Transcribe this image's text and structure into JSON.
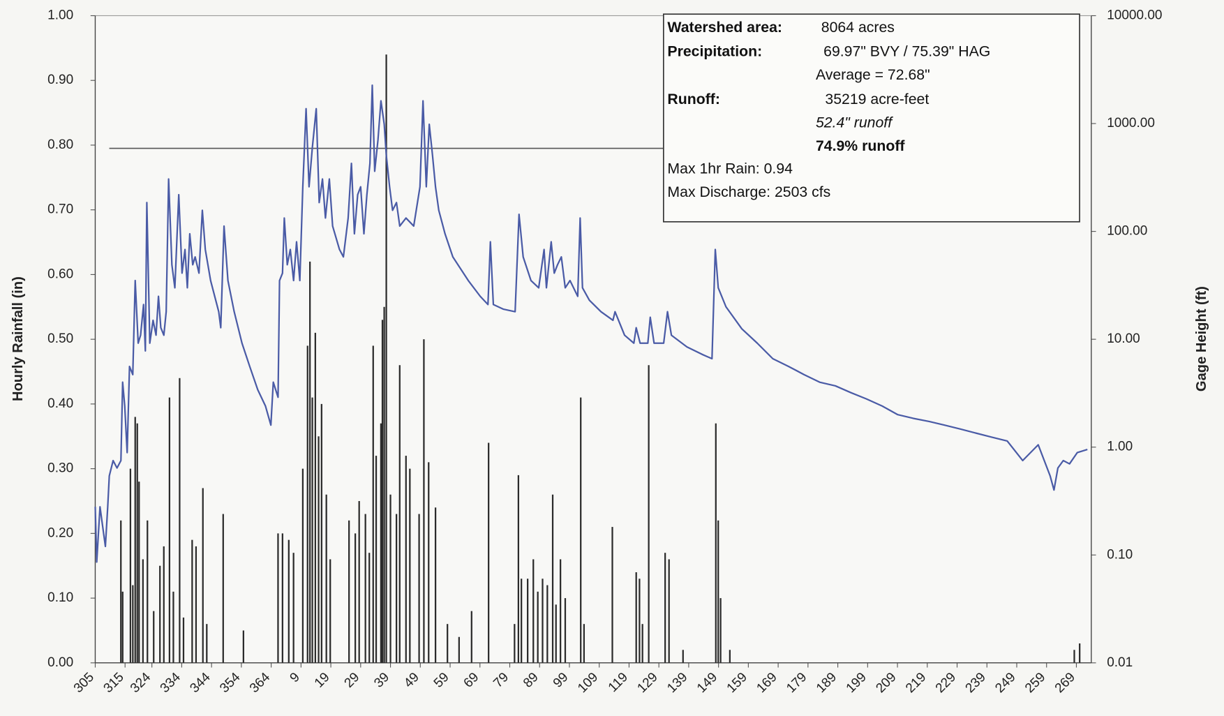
{
  "chart_data": {
    "type": "bar+line",
    "ylabel": "Hourly Rainfall (in)",
    "y2label": "Gage Height (ft)",
    "xlim": [
      0,
      334
    ],
    "xticks": [
      {
        "value": 0,
        "label": "305"
      },
      {
        "value": 10,
        "label": "315"
      },
      {
        "value": 19,
        "label": "324"
      },
      {
        "value": 29,
        "label": "334"
      },
      {
        "value": 39,
        "label": "344"
      },
      {
        "value": 49,
        "label": "354"
      },
      {
        "value": 59,
        "label": "364"
      },
      {
        "value": 69,
        "label": "9"
      },
      {
        "value": 79,
        "label": "19"
      },
      {
        "value": 89,
        "label": "29"
      },
      {
        "value": 99,
        "label": "39"
      },
      {
        "value": 109,
        "label": "49"
      },
      {
        "value": 119,
        "label": "59"
      },
      {
        "value": 129,
        "label": "69"
      },
      {
        "value": 139,
        "label": "79"
      },
      {
        "value": 149,
        "label": "89"
      },
      {
        "value": 159,
        "label": "99"
      },
      {
        "value": 169,
        "label": "109"
      },
      {
        "value": 179,
        "label": "119"
      },
      {
        "value": 189,
        "label": "129"
      },
      {
        "value": 199,
        "label": "139"
      },
      {
        "value": 209,
        "label": "149"
      },
      {
        "value": 219,
        "label": "159"
      },
      {
        "value": 229,
        "label": "169"
      },
      {
        "value": 239,
        "label": "179"
      },
      {
        "value": 249,
        "label": "189"
      },
      {
        "value": 259,
        "label": "199"
      },
      {
        "value": 269,
        "label": "209"
      },
      {
        "value": 279,
        "label": "219"
      },
      {
        "value": 289,
        "label": "229"
      },
      {
        "value": 299,
        "label": "239"
      },
      {
        "value": 309,
        "label": "249"
      },
      {
        "value": 319,
        "label": "259"
      },
      {
        "value": 329,
        "label": "269"
      }
    ],
    "ylim": [
      0,
      1
    ],
    "yticks": [
      {
        "value": 0,
        "label": "0.00"
      },
      {
        "value": 0.1,
        "label": "0.10"
      },
      {
        "value": 0.2,
        "label": "0.20"
      },
      {
        "value": 0.3,
        "label": "0.30"
      },
      {
        "value": 0.4,
        "label": "0.40"
      },
      {
        "value": 0.5,
        "label": "0.50"
      },
      {
        "value": 0.6,
        "label": "0.60"
      },
      {
        "value": 0.7,
        "label": "0.70"
      },
      {
        "value": 0.8,
        "label": "0.80"
      },
      {
        "value": 0.9,
        "label": "0.90"
      },
      {
        "value": 1,
        "label": "1.00"
      }
    ],
    "y2lim": [
      0.01,
      10000
    ],
    "y2log": true,
    "y2ticks": [
      0.01,
      {
        "value": 0.1,
        "label": "0.10"
      },
      {
        "value": 1,
        "label": "1.00"
      },
      {
        "value": 10,
        "label": "10.00"
      },
      {
        "value": 100,
        "label": "100.00"
      },
      {
        "value": 1000,
        "label": "1000.00"
      },
      {
        "value": 10000,
        "label": "10000.00"
      }
    ],
    "reference_line": {
      "y": 0.795,
      "x": [
        4.7,
        190.6
      ],
      "color": "#555555"
    },
    "series": [
      {
        "type": "bar",
        "axis": "y",
        "color": "#2b2b2b",
        "x": [
          8.6,
          9.2,
          11.8,
          12.6,
          13.4,
          14.1,
          14.7,
          16.0,
          17.5,
          19.6,
          21.7,
          23.0,
          24.9,
          26.2,
          28.3,
          29.6,
          32.5,
          33.8,
          36.1,
          37.4,
          42.9,
          49.7,
          61.3,
          62.8,
          64.9,
          66.5,
          69.6,
          71.2,
          72.0,
          72.8,
          73.8,
          74.9,
          75.9,
          77.5,
          78.8,
          85.1,
          87.2,
          88.5,
          90.6,
          91.9,
          93.2,
          94.2,
          95.8,
          96.3,
          96.9,
          97.6,
          99.0,
          101.0,
          102.1,
          104.2,
          105.5,
          108.6,
          110.2,
          111.8,
          114.1,
          118.1,
          122.0,
          126.2,
          131.9,
          140.6,
          141.9,
          142.9,
          145.0,
          146.9,
          148.4,
          150.0,
          151.6,
          153.4,
          154.5,
          156.0,
          157.6,
          162.8,
          163.9,
          173.4,
          181.4,
          182.5,
          183.5,
          185.6,
          191.1,
          192.4,
          197.1,
          208.1,
          208.9,
          209.7,
          212.8,
          328.3,
          330.1
        ],
        "values": [
          0.22,
          0.11,
          0.3,
          0.12,
          0.38,
          0.37,
          0.28,
          0.16,
          0.22,
          0.08,
          0.15,
          0.18,
          0.41,
          0.11,
          0.44,
          0.07,
          0.19,
          0.18,
          0.27,
          0.06,
          0.23,
          0.05,
          0.2,
          0.2,
          0.19,
          0.17,
          0.3,
          0.49,
          0.62,
          0.41,
          0.51,
          0.35,
          0.4,
          0.26,
          0.16,
          0.22,
          0.2,
          0.25,
          0.23,
          0.17,
          0.49,
          0.32,
          0.37,
          0.53,
          0.55,
          0.94,
          0.26,
          0.23,
          0.46,
          0.32,
          0.3,
          0.23,
          0.5,
          0.31,
          0.24,
          0.06,
          0.04,
          0.08,
          0.34,
          0.06,
          0.29,
          0.13,
          0.13,
          0.16,
          0.11,
          0.13,
          0.12,
          0.26,
          0.09,
          0.16,
          0.1,
          0.41,
          0.06,
          0.21,
          0.14,
          0.13,
          0.06,
          0.46,
          0.17,
          0.16,
          0.02,
          0.37,
          0.22,
          0.1,
          0.02,
          0.02,
          0.03
        ]
      },
      {
        "type": "line",
        "axis": "y2",
        "color": "#4a5ba6",
        "x": [
          0,
          0.5,
          1.6,
          3.4,
          4.2,
          4.7,
          6.0,
          7.3,
          8.6,
          9.2,
          9.9,
          10.7,
          11.5,
          12.6,
          13.4,
          14.4,
          15.2,
          16.2,
          16.8,
          17.3,
          18.3,
          19.4,
          20.4,
          21.2,
          22.0,
          23.0,
          23.8,
          24.6,
          25.7,
          26.7,
          28.0,
          29.1,
          30.1,
          30.9,
          31.7,
          32.7,
          33.5,
          34.8,
          35.9,
          36.9,
          38.7,
          41.4,
          42.1,
          43.2,
          44.5,
          46.6,
          49.2,
          51.8,
          54.5,
          57.1,
          58.9,
          59.7,
          61.3,
          61.8,
          62.8,
          63.4,
          64.4,
          65.4,
          66.5,
          67.5,
          68.6,
          69.6,
          70.7,
          71.7,
          72.8,
          74.1,
          75.1,
          76.2,
          77.2,
          78.5,
          79.6,
          81.9,
          83.2,
          84.8,
          85.9,
          86.9,
          88.0,
          89.0,
          90.1,
          91.1,
          92.1,
          92.9,
          93.7,
          94.8,
          95.8,
          96.9,
          97.6,
          98.7,
          99.7,
          101.0,
          102.1,
          104.2,
          106.8,
          108.9,
          109.9,
          111.0,
          112.0,
          113.1,
          114.1,
          115.2,
          117.3,
          119.9,
          125.1,
          129.1,
          131.7,
          132.5,
          133.5,
          136.9,
          140.8,
          142.1,
          143.5,
          146.1,
          148.7,
          150.5,
          151.3,
          152.9,
          153.9,
          155.0,
          156.3,
          157.6,
          159.2,
          161.8,
          162.6,
          163.4,
          165.7,
          169.6,
          173.6,
          174.3,
          177.5,
          180.6,
          181.4,
          182.7,
          185.3,
          186.1,
          187.4,
          190.6,
          191.9,
          193.2,
          198.4,
          203.7,
          206.8,
          207.9,
          208.9,
          211.5,
          216.8,
          222.0,
          227.2,
          232.5,
          237.7,
          242.9,
          248.2,
          253.4,
          258.6,
          263.9,
          269.1,
          274.3,
          279.6,
          284.8,
          290.1,
          295.3,
          300.5,
          305.8,
          311.0,
          316.2,
          320.2,
          321.5,
          322.8,
          324.6,
          326.7,
          329.3,
          332.7
        ],
        "values": [
          0.28,
          0.086,
          0.28,
          0.12,
          0.28,
          0.54,
          0.75,
          0.64,
          0.75,
          4.0,
          2.4,
          0.89,
          5.6,
          4.7,
          35,
          9.2,
          10.9,
          21,
          7.8,
          185,
          9.2,
          15,
          10.9,
          25,
          12.8,
          10.9,
          18,
          306,
          49,
          30,
          219,
          41,
          68,
          30,
          95,
          49,
          58,
          41,
          157,
          68,
          35,
          18,
          12.8,
          112,
          35,
          18,
          9.2,
          5.6,
          3.4,
          2.4,
          1.6,
          4.0,
          2.9,
          35,
          41,
          133,
          49,
          68,
          35,
          80,
          35,
          259,
          1374,
          259,
          596,
          1374,
          185,
          306,
          133,
          306,
          112,
          68,
          58,
          133,
          427,
          95,
          219,
          259,
          95,
          219,
          427,
          2265,
          361,
          705,
          1622,
          984,
          505,
          259,
          157,
          185,
          112,
          133,
          112,
          259,
          1622,
          259,
          984,
          505,
          259,
          157,
          95,
          58,
          35,
          25,
          21,
          80,
          21,
          19,
          18,
          144,
          58,
          35,
          30,
          68,
          30,
          80,
          41,
          49,
          58,
          30,
          35,
          25,
          133,
          30,
          23,
          18,
          15,
          18,
          10.9,
          9.2,
          12.8,
          9.2,
          9.2,
          16,
          9.2,
          9.2,
          18,
          10.9,
          8.5,
          7.2,
          6.6,
          68,
          30,
          20,
          12.5,
          9.2,
          6.6,
          5.6,
          4.7,
          4.0,
          3.7,
          3.2,
          2.8,
          2.4,
          2.0,
          1.85,
          1.73,
          1.6,
          1.47,
          1.35,
          1.24,
          1.14,
          0.75,
          1.05,
          0.54,
          0.4,
          0.64,
          0.75,
          0.7,
          0.89,
          0.95
        ]
      }
    ],
    "annotation": {
      "lines": [
        "Watershed area:",
        "8064 acres",
        "Precipitation:",
        "69.97\" BVY / 75.39\" HAG",
        "Average = 72.68\"",
        "Runoff:",
        "35219 acre-feet",
        "52.4\" runoff",
        "74.9% runoff",
        "Max 1hr Rain: 0.94",
        "Max Discharge: 2503 cfs"
      ]
    }
  }
}
